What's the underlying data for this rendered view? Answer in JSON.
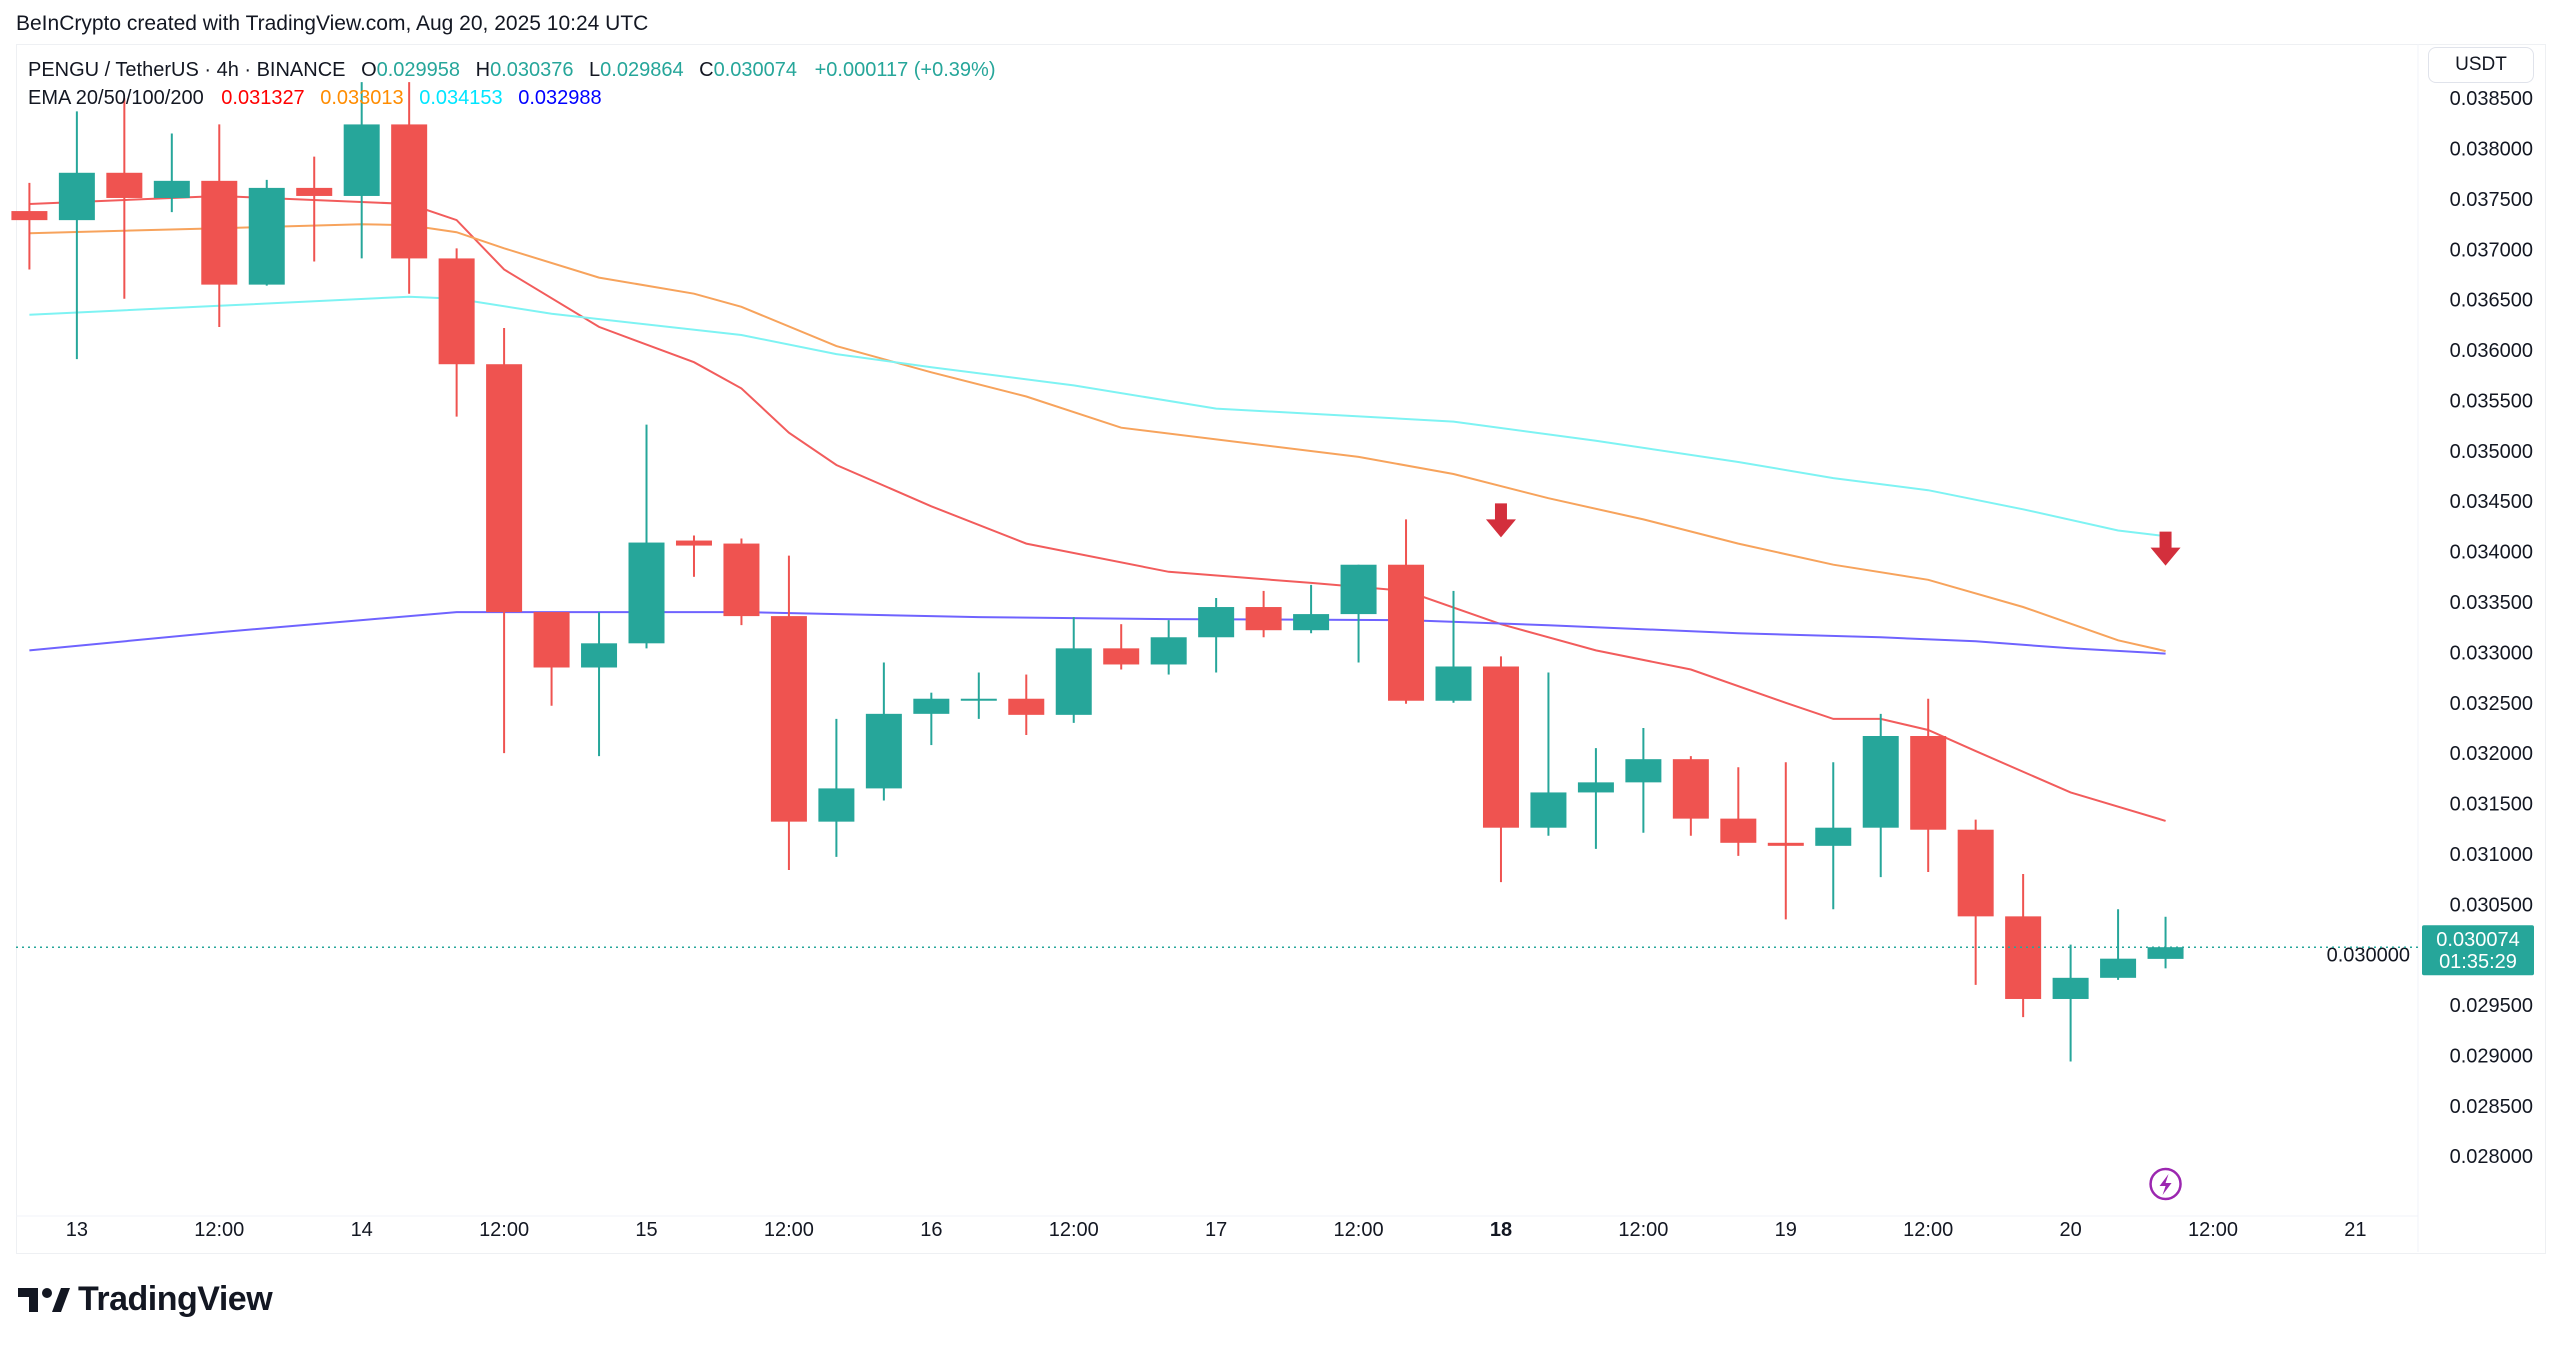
{
  "credit": "BeInCrypto created with TradingView.com, Aug 20, 2025 10:24 UTC",
  "legend": {
    "symbol": "PENGU / TetherUS · 4h · BINANCE",
    "o_label": "O",
    "o": "0.029958",
    "h_label": "H",
    "h": "0.030376",
    "l_label": "L",
    "l": "0.029864",
    "c_label": "C",
    "c": "0.030074",
    "change": "+0.000117 (+0.39%)",
    "ema_label": "EMA 20/50/100/200",
    "ema20": "0.031327",
    "ema50": "0.033013",
    "ema100": "0.034153",
    "ema200": "0.032988"
  },
  "unit_button": "USDT",
  "last_price": {
    "value": "0.030074",
    "countdown": "01:35:29"
  },
  "logo_text": "TradingView",
  "colors": {
    "up": "#26a69a",
    "down": "#ef5350",
    "ema20": "#f25c5c",
    "ema50": "#f7a35c",
    "ema100": "#7ef3f3",
    "ema200": "#6f63ff",
    "ema20_text": "#ff0000",
    "ema50_text": "#ff8c00",
    "ema100_text": "#00e5ff",
    "ema200_text": "#0000ff",
    "arrow": "#d32f3c",
    "lightning": "#9c27b0"
  },
  "icons": [
    "down-arrow-icon",
    "lightning-icon",
    "tradingview-logo-icon"
  ],
  "chart_data": {
    "type": "candlestick",
    "interval": "4h",
    "ylim": [
      0.0278,
      0.0387
    ],
    "grid": false,
    "y_ticks": [
      "0.038500",
      "0.038000",
      "0.037500",
      "0.037000",
      "0.036500",
      "0.036000",
      "0.035500",
      "0.035000",
      "0.034500",
      "0.034000",
      "0.033500",
      "0.033000",
      "0.032500",
      "0.032000",
      "0.031500",
      "0.031000",
      "0.030500",
      "0.030000",
      "0.029500",
      "0.029000",
      "0.028500",
      "0.028000"
    ],
    "x_ticks": [
      "13",
      "12:00",
      "14",
      "12:00",
      "15",
      "12:00",
      "16",
      "12:00",
      "17",
      "12:00",
      "18",
      "12:00",
      "19",
      "12:00",
      "20",
      "12:00",
      "21"
    ],
    "x_tick_bold": "18",
    "candles_columns": [
      "time",
      "open",
      "high",
      "low",
      "close"
    ],
    "candles": [
      [
        "08-12 20:00",
        0.03738,
        0.03766,
        0.0368,
        0.03729
      ],
      [
        "08-13 00:00",
        0.03729,
        0.03837,
        0.03591,
        0.03776
      ],
      [
        "08-13 04:00",
        0.03776,
        0.0385,
        0.03651,
        0.03751
      ],
      [
        "08-13 08:00",
        0.03751,
        0.03815,
        0.03737,
        0.03768
      ],
      [
        "08-13 12:00",
        0.03768,
        0.03824,
        0.03623,
        0.03665
      ],
      [
        "08-13 16:00",
        0.03665,
        0.03769,
        0.03664,
        0.03761
      ],
      [
        "08-13 20:00",
        0.03761,
        0.03792,
        0.03688,
        0.03753
      ],
      [
        "08-14 00:00",
        0.03753,
        0.03866,
        0.03691,
        0.03824
      ],
      [
        "08-14 04:00",
        0.03824,
        0.03866,
        0.03656,
        0.03691
      ],
      [
        "08-14 08:00",
        0.03691,
        0.03701,
        0.03534,
        0.03586
      ],
      [
        "08-14 12:00",
        0.03586,
        0.03622,
        0.032,
        0.0334
      ],
      [
        "08-14 16:00",
        0.0334,
        0.0334,
        0.03247,
        0.03285
      ],
      [
        "08-14 20:00",
        0.03285,
        0.0334,
        0.03197,
        0.03309
      ],
      [
        "08-15 00:00",
        0.03309,
        0.03526,
        0.03304,
        0.03409
      ],
      [
        "08-15 04:00",
        0.03411,
        0.03416,
        0.03375,
        0.03406
      ],
      [
        "08-15 08:00",
        0.03408,
        0.03413,
        0.03327,
        0.03336
      ],
      [
        "08-15 12:00",
        0.03336,
        0.03396,
        0.03084,
        0.03132
      ],
      [
        "08-15 16:00",
        0.03132,
        0.03234,
        0.03097,
        0.03165
      ],
      [
        "08-15 20:00",
        0.03165,
        0.0329,
        0.03153,
        0.03239
      ],
      [
        "08-16 00:00",
        0.03239,
        0.0326,
        0.03208,
        0.03254
      ],
      [
        "08-16 04:00",
        0.03254,
        0.0328,
        0.03234,
        0.03254
      ],
      [
        "08-16 08:00",
        0.03254,
        0.03278,
        0.03218,
        0.03238
      ],
      [
        "08-16 12:00",
        0.03238,
        0.03335,
        0.0323,
        0.03304
      ],
      [
        "08-16 16:00",
        0.03304,
        0.03328,
        0.03283,
        0.03288
      ],
      [
        "08-16 20:00",
        0.03288,
        0.03332,
        0.03278,
        0.03315
      ],
      [
        "08-17 00:00",
        0.03315,
        0.03354,
        0.0328,
        0.03345
      ],
      [
        "08-17 04:00",
        0.03345,
        0.03361,
        0.03315,
        0.03322
      ],
      [
        "08-17 08:00",
        0.03322,
        0.03367,
        0.03319,
        0.03338
      ],
      [
        "08-17 12:00",
        0.03338,
        0.03387,
        0.0329,
        0.03387
      ],
      [
        "08-17 16:00",
        0.03387,
        0.03432,
        0.03249,
        0.03252
      ],
      [
        "08-17 20:00",
        0.03252,
        0.03361,
        0.0325,
        0.03286
      ],
      [
        "08-18 00:00",
        0.03286,
        0.03296,
        0.03072,
        0.03126
      ],
      [
        "08-18 04:00",
        0.03126,
        0.0328,
        0.03118,
        0.03161
      ],
      [
        "08-18 08:00",
        0.03161,
        0.03205,
        0.03105,
        0.03171
      ],
      [
        "08-18 12:00",
        0.03171,
        0.03225,
        0.03121,
        0.03194
      ],
      [
        "08-18 16:00",
        0.03194,
        0.03197,
        0.03118,
        0.03135
      ],
      [
        "08-18 20:00",
        0.03135,
        0.03186,
        0.03098,
        0.03111
      ],
      [
        "08-19 00:00",
        0.03111,
        0.03191,
        0.03035,
        0.03108
      ],
      [
        "08-19 04:00",
        0.03108,
        0.03191,
        0.03045,
        0.03126
      ],
      [
        "08-19 08:00",
        0.03126,
        0.03239,
        0.03077,
        0.03217
      ],
      [
        "08-19 12:00",
        0.03217,
        0.03254,
        0.03082,
        0.03124
      ],
      [
        "08-19 16:00",
        0.03124,
        0.03134,
        0.0297,
        0.03038
      ],
      [
        "08-19 20:00",
        0.03038,
        0.0308,
        0.02938,
        0.02956
      ],
      [
        "08-20 00:00",
        0.02956,
        0.0301,
        0.02894,
        0.02977
      ],
      [
        "08-20 04:00",
        0.02977,
        0.03045,
        0.02975,
        0.02996
      ],
      [
        "08-20 08:00",
        0.029958,
        0.030376,
        0.029864,
        0.030074
      ]
    ],
    "series": [
      {
        "name": "EMA 20",
        "points": [
          [
            "08-12 20:00",
            0.03745
          ],
          [
            "08-13 12:00",
            0.03753
          ],
          [
            "08-14 04:00",
            0.03745
          ],
          [
            "08-14 08:00",
            0.03729
          ],
          [
            "08-14 12:00",
            0.0368
          ],
          [
            "08-14 20:00",
            0.03623
          ],
          [
            "08-15 04:00",
            0.03588
          ],
          [
            "08-15 08:00",
            0.03562
          ],
          [
            "08-15 12:00",
            0.03518
          ],
          [
            "08-15 16:00",
            0.03486
          ],
          [
            "08-16 00:00",
            0.03445
          ],
          [
            "08-16 08:00",
            0.03408
          ],
          [
            "08-16 20:00",
            0.0338
          ],
          [
            "08-17 08:00",
            0.03369
          ],
          [
            "08-17 16:00",
            0.03361
          ],
          [
            "08-18 00:00",
            0.03328
          ],
          [
            "08-18 08:00",
            0.03302
          ],
          [
            "08-18 16:00",
            0.03283
          ],
          [
            "08-19 00:00",
            0.0325
          ],
          [
            "08-19 04:00",
            0.03234
          ],
          [
            "08-19 08:00",
            0.03234
          ],
          [
            "08-19 12:00",
            0.03223
          ],
          [
            "08-19 16:00",
            0.03202
          ],
          [
            "08-20 00:00",
            0.03161
          ],
          [
            "08-20 08:00",
            0.031327
          ]
        ]
      },
      {
        "name": "EMA 50",
        "points": [
          [
            "08-12 20:00",
            0.03716
          ],
          [
            "08-13 12:00",
            0.03721
          ],
          [
            "08-14 00:00",
            0.03725
          ],
          [
            "08-14 04:00",
            0.03724
          ],
          [
            "08-14 08:00",
            0.03717
          ],
          [
            "08-14 12:00",
            0.03701
          ],
          [
            "08-14 20:00",
            0.03672
          ],
          [
            "08-15 04:00",
            0.03656
          ],
          [
            "08-15 08:00",
            0.03643
          ],
          [
            "08-15 16:00",
            0.03604
          ],
          [
            "08-16 00:00",
            0.03578
          ],
          [
            "08-16 08:00",
            0.03554
          ],
          [
            "08-16 16:00",
            0.03523
          ],
          [
            "08-17 12:00",
            0.03494
          ],
          [
            "08-17 20:00",
            0.03477
          ],
          [
            "08-18 04:00",
            0.03453
          ],
          [
            "08-18 12:00",
            0.03432
          ],
          [
            "08-18 20:00",
            0.03408
          ],
          [
            "08-19 04:00",
            0.03387
          ],
          [
            "08-19 12:00",
            0.03372
          ],
          [
            "08-19 20:00",
            0.03345
          ],
          [
            "08-20 04:00",
            0.03312
          ],
          [
            "08-20 08:00",
            0.033013
          ]
        ]
      },
      {
        "name": "EMA 100",
        "points": [
          [
            "08-12 20:00",
            0.03635
          ],
          [
            "08-13 12:00",
            0.03644
          ],
          [
            "08-14 04:00",
            0.03653
          ],
          [
            "08-14 08:00",
            0.03651
          ],
          [
            "08-14 16:00",
            0.03636
          ],
          [
            "08-15 08:00",
            0.03615
          ],
          [
            "08-15 16:00",
            0.03596
          ],
          [
            "08-16 00:00",
            0.03583
          ],
          [
            "08-16 12:00",
            0.03565
          ],
          [
            "08-17 00:00",
            0.03542
          ],
          [
            "08-17 20:00",
            0.03529
          ],
          [
            "08-18 08:00",
            0.0351
          ],
          [
            "08-18 20:00",
            0.03489
          ],
          [
            "08-19 04:00",
            0.03473
          ],
          [
            "08-19 12:00",
            0.03461
          ],
          [
            "08-19 20:00",
            0.03442
          ],
          [
            "08-20 04:00",
            0.03421
          ],
          [
            "08-20 08:00",
            0.034153
          ]
        ]
      },
      {
        "name": "EMA 200",
        "points": [
          [
            "08-12 20:00",
            0.03302
          ],
          [
            "08-13 12:00",
            0.0332
          ],
          [
            "08-14 00:00",
            0.03332
          ],
          [
            "08-14 08:00",
            0.0334
          ],
          [
            "08-15 08:00",
            0.0334
          ],
          [
            "08-16 04:00",
            0.03335
          ],
          [
            "08-16 20:00",
            0.03333
          ],
          [
            "08-17 16:00",
            0.03332
          ],
          [
            "08-18 04:00",
            0.03327
          ],
          [
            "08-18 20:00",
            0.03319
          ],
          [
            "08-19 08:00",
            0.03315
          ],
          [
            "08-19 16:00",
            0.03311
          ],
          [
            "08-20 00:00",
            0.03304
          ],
          [
            "08-20 08:00",
            0.032988
          ]
        ]
      }
    ],
    "annotations": [
      {
        "type": "down-arrow",
        "time": "08-18 00:00",
        "price": 0.0343
      },
      {
        "type": "down-arrow",
        "time": "08-20 08:00",
        "price": 0.03402
      }
    ]
  }
}
